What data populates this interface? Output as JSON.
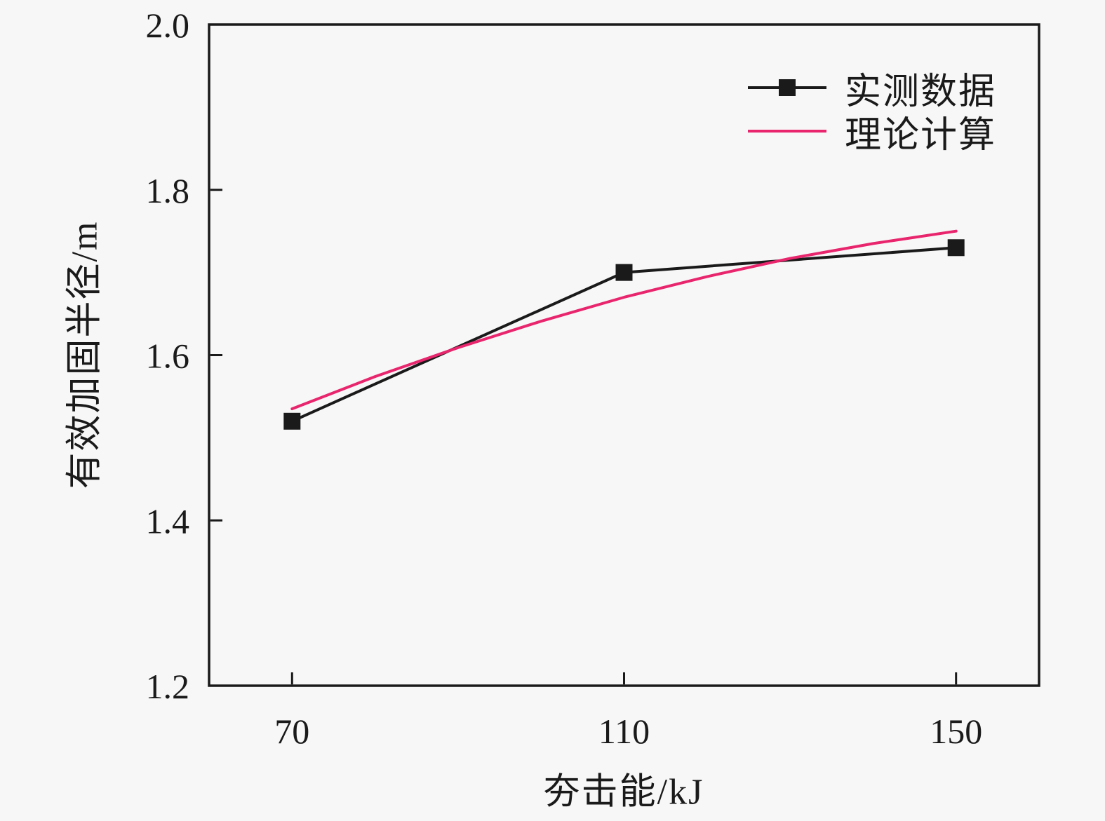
{
  "chart_data": {
    "type": "line",
    "title": "",
    "xlabel": "夯击能/kJ",
    "ylabel": "有效加固半径/m",
    "xlim": [
      60,
      160
    ],
    "ylim": [
      1.2,
      2.0
    ],
    "grid": false,
    "legend_position": "top-right-inside",
    "x_ticks": [
      {
        "v": 70,
        "label": "70"
      },
      {
        "v": 110,
        "label": "110"
      },
      {
        "v": 150,
        "label": "150"
      }
    ],
    "y_ticks": [
      {
        "v": 1.2,
        "label": "1.2"
      },
      {
        "v": 1.4,
        "label": "1.4"
      },
      {
        "v": 1.6,
        "label": "1.6"
      },
      {
        "v": 1.8,
        "label": "1.8"
      },
      {
        "v": 2.0,
        "label": "2.0"
      }
    ],
    "series": [
      {
        "name": "实测数据",
        "type": "line+marker",
        "marker": "square",
        "color": "#1a1a1a",
        "points": [
          [
            70,
            1.52
          ],
          [
            110,
            1.7
          ],
          [
            150,
            1.73
          ]
        ]
      },
      {
        "name": "理论计算",
        "type": "line",
        "marker": "none",
        "color": "#e8256d",
        "points": [
          [
            70,
            1.535
          ],
          [
            80,
            1.574
          ],
          [
            90,
            1.609
          ],
          [
            100,
            1.641
          ],
          [
            110,
            1.67
          ],
          [
            120,
            1.695
          ],
          [
            130,
            1.717
          ],
          [
            140,
            1.735
          ],
          [
            150,
            1.75
          ]
        ]
      }
    ],
    "colors": {
      "axis": "#1a1a1a",
      "text": "#1a1a1a",
      "background": "#f7f7f7",
      "measured": "#1a1a1a",
      "theoretical": "#e8256d"
    }
  }
}
